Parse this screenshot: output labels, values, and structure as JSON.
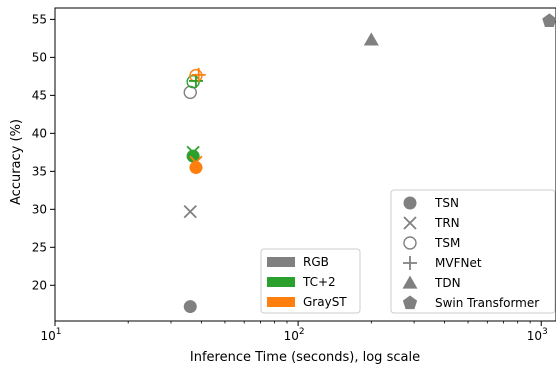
{
  "chart_data": {
    "type": "scatter",
    "xlabel": "Inference Time (seconds), log scale",
    "ylabel": "Accuracy (%)",
    "x_scale": "log",
    "xlim": [
      10,
      1150
    ],
    "ylim": [
      15.3,
      56.5
    ],
    "x_ticks": [
      {
        "value": 10,
        "base": "10",
        "exp": "1"
      },
      {
        "value": 100,
        "base": "10",
        "exp": "2"
      },
      {
        "value": 1000,
        "base": "10",
        "exp": "3"
      }
    ],
    "y_ticks": [
      "20",
      "25",
      "30",
      "35",
      "40",
      "45",
      "50",
      "55"
    ],
    "grid": false,
    "colors": {
      "RGB": "#808080",
      "TC+2": "#2ca02c",
      "GrayST": "#ff7f0e"
    },
    "color_legend": {
      "placement": "lower-center",
      "entries": [
        "RGB",
        "TC+2",
        "GrayST"
      ]
    },
    "marker_legend": {
      "placement": "lower-right",
      "entries": [
        {
          "label": "TSN",
          "marker": "circle"
        },
        {
          "label": "TRN",
          "marker": "x"
        },
        {
          "label": "TSM",
          "marker": "open-circle"
        },
        {
          "label": "MVFNet",
          "marker": "plus"
        },
        {
          "label": "TDN",
          "marker": "triangle"
        },
        {
          "label": "Swin Transformer",
          "marker": "pentagon"
        }
      ]
    },
    "points": [
      {
        "model": "TSN",
        "input": "RGB",
        "x": 36,
        "y": 17.2
      },
      {
        "model": "TSN",
        "input": "TC+2",
        "x": 37,
        "y": 37.0
      },
      {
        "model": "TSN",
        "input": "GrayST",
        "x": 38,
        "y": 35.5
      },
      {
        "model": "TRN",
        "input": "RGB",
        "x": 36,
        "y": 29.7
      },
      {
        "model": "TRN",
        "input": "TC+2",
        "x": 37,
        "y": 37.5
      },
      {
        "model": "TRN",
        "input": "GrayST",
        "x": 38,
        "y": 36.2
      },
      {
        "model": "TSM",
        "input": "RGB",
        "x": 36,
        "y": 45.4
      },
      {
        "model": "TSM",
        "input": "TC+2",
        "x": 37,
        "y": 46.8
      },
      {
        "model": "TSM",
        "input": "GrayST",
        "x": 38,
        "y": 47.6
      },
      {
        "model": "MVFNet",
        "input": "TC+2",
        "x": 38,
        "y": 46.9
      },
      {
        "model": "MVFNet",
        "input": "GrayST",
        "x": 39,
        "y": 47.7
      },
      {
        "model": "TDN",
        "input": "RGB",
        "x": 200,
        "y": 52.3
      },
      {
        "model": "Swin Transformer",
        "input": "RGB",
        "x": 1080,
        "y": 54.8
      }
    ]
  }
}
